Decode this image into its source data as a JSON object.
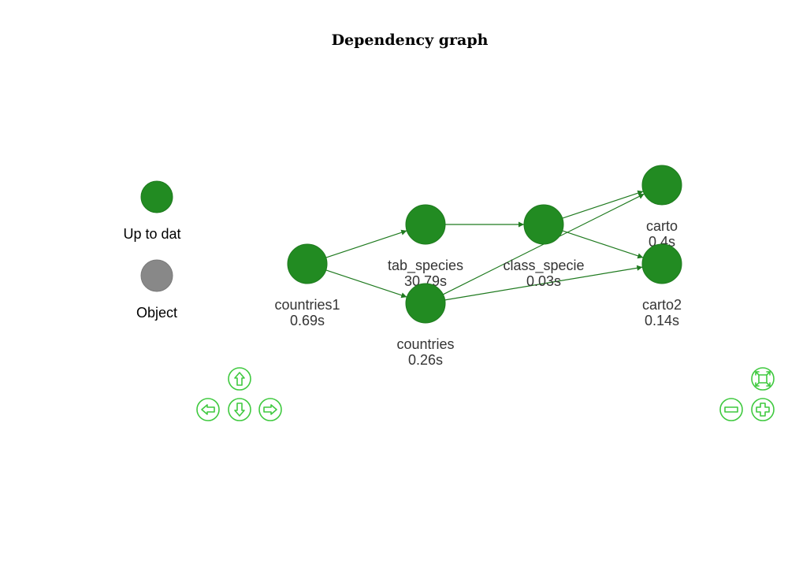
{
  "title": "Dependency graph",
  "colors": {
    "up_to_date": "#228b22",
    "object": "#888888",
    "edge": "#1f7a1f",
    "nav": "#3fc93f"
  },
  "legend": [
    {
      "label": "Up to dat",
      "color": "#228b22"
    },
    {
      "label": "Object",
      "color": "#888888"
    }
  ],
  "nodes": [
    {
      "id": "countries1",
      "name": "countries1",
      "time": "0.69s",
      "status": "up_to_date"
    },
    {
      "id": "tab_species",
      "name": "tab_species",
      "time": "30.79s",
      "status": "up_to_date"
    },
    {
      "id": "countries",
      "name": "countries",
      "time": "0.26s",
      "status": "up_to_date"
    },
    {
      "id": "class_specie",
      "name": "class_specie",
      "time": "0.03s",
      "status": "up_to_date"
    },
    {
      "id": "carto",
      "name": "carto",
      "time": "0.4s",
      "status": "up_to_date"
    },
    {
      "id": "carto2",
      "name": "carto2",
      "time": "0.14s",
      "status": "up_to_date"
    }
  ],
  "edges": [
    {
      "from": "countries1",
      "to": "tab_species"
    },
    {
      "from": "countries1",
      "to": "countries"
    },
    {
      "from": "tab_species",
      "to": "class_specie"
    },
    {
      "from": "countries",
      "to": "carto"
    },
    {
      "from": "countries",
      "to": "carto2"
    },
    {
      "from": "class_specie",
      "to": "carto"
    },
    {
      "from": "class_specie",
      "to": "carto2"
    }
  ],
  "navigation": {
    "up": "arrow-up-icon",
    "down": "arrow-down-icon",
    "left": "arrow-left-icon",
    "right": "arrow-right-icon",
    "fit": "zoom-extends-icon",
    "zoom_out": "zoom-out-icon",
    "zoom_in": "zoom-in-icon"
  }
}
